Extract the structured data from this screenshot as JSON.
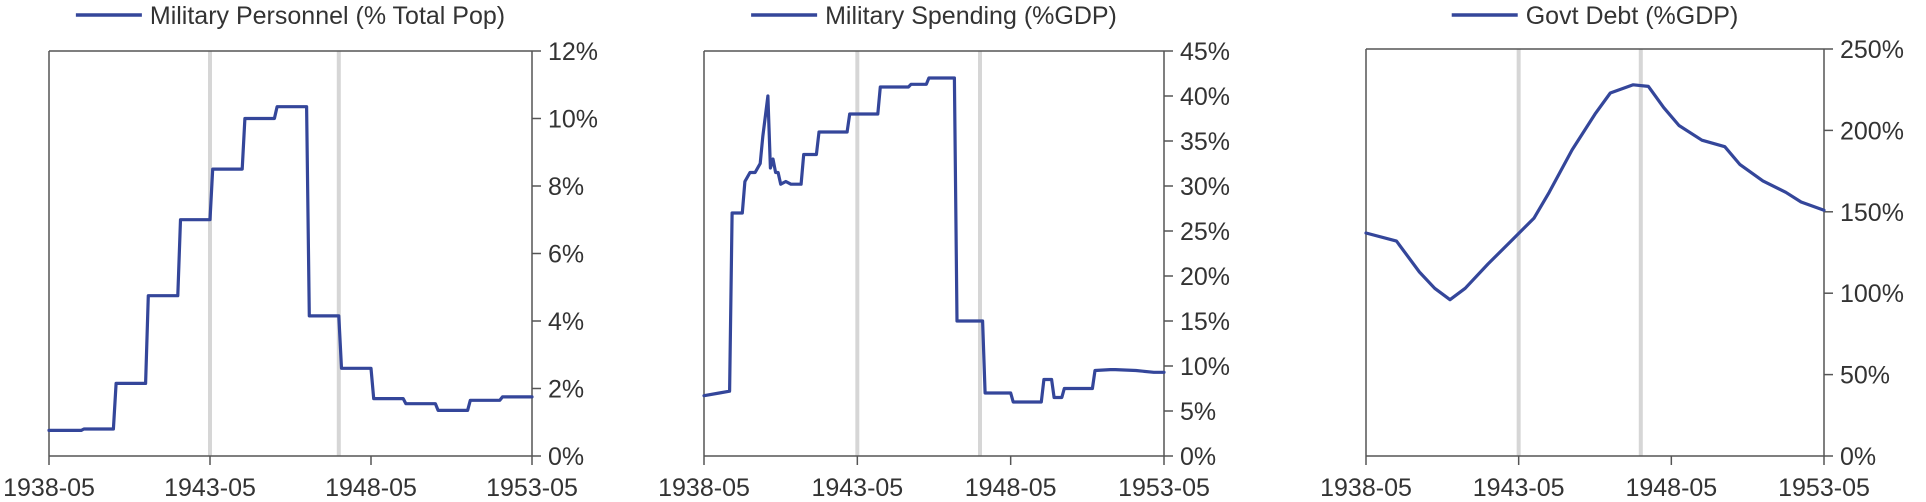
{
  "colors": {
    "series": "#34469a",
    "axis": "#555555",
    "marker": "#d6d6d6"
  },
  "chart_data": [
    {
      "type": "line",
      "series": [
        {
          "name": "Military Personnel (% Total Pop)",
          "x": [
            "1938-05",
            "1939-05",
            "1939-06",
            "1940-05",
            "1940-06",
            "1941-05",
            "1941-06",
            "1942-05",
            "1942-06",
            "1943-05",
            "1943-06",
            "1944-05",
            "1944-06",
            "1945-05",
            "1945-06",
            "1946-05",
            "1946-06",
            "1947-05",
            "1947-06",
            "1948-05",
            "1948-06",
            "1949-05",
            "1949-06",
            "1950-05",
            "1950-06",
            "1951-05",
            "1951-06",
            "1952-05",
            "1952-06",
            "1953-05"
          ],
          "values": [
            0.76,
            0.76,
            0.8,
            0.8,
            2.15,
            2.15,
            4.75,
            4.75,
            7.0,
            7.0,
            8.5,
            8.5,
            10.0,
            10.0,
            10.35,
            10.35,
            4.15,
            4.15,
            2.6,
            2.6,
            1.7,
            1.7,
            1.55,
            1.55,
            1.35,
            1.35,
            1.65,
            1.65,
            1.75,
            1.75
          ]
        }
      ],
      "xticks": [
        "1938-05",
        "1943-05",
        "1948-05",
        "1953-05"
      ],
      "yticks": [
        "0%",
        "2%",
        "4%",
        "6%",
        "8%",
        "10%",
        "12%"
      ],
      "ylim": [
        0,
        12
      ],
      "xlim": [
        "1938-05",
        "1953-05"
      ],
      "markers": [
        "1943-05",
        "1947-05"
      ],
      "legend": "top",
      "yaxis_side": "right",
      "grid": false
    },
    {
      "type": "line",
      "series": [
        {
          "name": "Military Spending (%GDP)",
          "x": [
            "1938-05",
            "1938-11",
            "1939-03",
            "1939-04",
            "1939-08",
            "1939-09",
            "1939-11",
            "1940-01",
            "1940-03",
            "1940-04",
            "1940-06",
            "1940-07",
            "1940-08",
            "1940-09",
            "1940-10",
            "1940-11",
            "1941-01",
            "1941-03",
            "1941-05",
            "1941-07",
            "1941-08",
            "1942-01",
            "1942-02",
            "1943-01",
            "1943-02",
            "1944-01",
            "1944-02",
            "1945-01",
            "1945-02",
            "1945-08",
            "1945-09",
            "1946-07",
            "1946-08",
            "1947-06",
            "1947-07",
            "1948-05",
            "1948-06",
            "1949-05",
            "1949-06",
            "1949-09",
            "1949-10",
            "1950-01",
            "1950-02",
            "1951-01",
            "1951-02",
            "1951-08",
            "1951-10",
            "1952-06",
            "1953-01",
            "1953-05"
          ],
          "values": [
            6.7,
            7.0,
            7.2,
            27.0,
            27.0,
            30.5,
            31.5,
            31.5,
            32.5,
            35.5,
            40.0,
            32.0,
            33.0,
            31.5,
            31.5,
            30.2,
            30.5,
            30.2,
            30.2,
            30.2,
            33.5,
            33.5,
            36.0,
            36.0,
            38.0,
            38.0,
            41.0,
            41.0,
            41.3,
            41.3,
            42.0,
            42.0,
            15.0,
            15.0,
            7.0,
            7.0,
            6.0,
            6.0,
            8.5,
            8.5,
            6.5,
            6.5,
            7.5,
            7.5,
            9.5,
            9.6,
            9.6,
            9.5,
            9.3,
            9.3
          ]
        }
      ],
      "xticks": [
        "1938-05",
        "1943-05",
        "1948-05",
        "1953-05"
      ],
      "yticks": [
        "0%",
        "5%",
        "10%",
        "15%",
        "20%",
        "25%",
        "30%",
        "35%",
        "40%",
        "45%"
      ],
      "ylim": [
        0,
        45
      ],
      "xlim": [
        "1938-05",
        "1953-05"
      ],
      "markers": [
        "1943-05",
        "1947-05"
      ],
      "legend": "top",
      "yaxis_side": "right",
      "grid": false
    },
    {
      "type": "line",
      "series": [
        {
          "name": "Govt Debt (%GDP)",
          "x": [
            "1938-05",
            "1939-05",
            "1940-02",
            "1940-08",
            "1941-02",
            "1941-08",
            "1942-05",
            "1943-02",
            "1943-11",
            "1944-05",
            "1945-02",
            "1945-11",
            "1946-05",
            "1947-02",
            "1947-08",
            "1948-02",
            "1948-08",
            "1949-05",
            "1950-02",
            "1950-08",
            "1951-05",
            "1952-02",
            "1952-08",
            "1953-05"
          ],
          "values": [
            137,
            132,
            113,
            103,
            96,
            103,
            118,
            132,
            146,
            162,
            188,
            210,
            223,
            228,
            227,
            214,
            203,
            194,
            190,
            179,
            169,
            162,
            156,
            151
          ]
        }
      ],
      "xticks": [
        "1938-05",
        "1943-05",
        "1948-05",
        "1953-05"
      ],
      "yticks": [
        "0%",
        "50%",
        "100%",
        "150%",
        "200%",
        "250%"
      ],
      "ylim": [
        0,
        250
      ],
      "xlim": [
        "1938-05",
        "1953-05"
      ],
      "markers": [
        "1943-05",
        "1947-05"
      ],
      "legend": "top",
      "yaxis_side": "right",
      "grid": false
    }
  ]
}
